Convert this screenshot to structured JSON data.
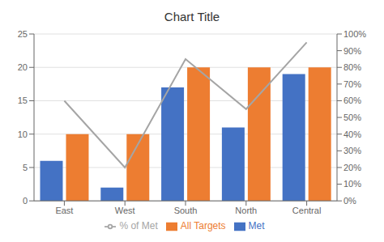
{
  "chart_data": {
    "type": "bar",
    "title": "Chart Title",
    "categories": [
      "East",
      "West",
      "South",
      "North",
      "Central"
    ],
    "series": [
      {
        "name": "Met",
        "color": "#4472C4",
        "values": [
          6,
          2,
          17,
          11,
          19
        ]
      },
      {
        "name": "All Targets",
        "color": "#ED7D31",
        "values": [
          10,
          10,
          20,
          20,
          20
        ]
      },
      {
        "name": "% of Met",
        "type": "line",
        "axis": "y2",
        "color": "#A5A5A5",
        "values": [
          0.6,
          0.2,
          0.85,
          0.55,
          0.95
        ]
      }
    ],
    "ylim": [
      0,
      25
    ],
    "yticks": [
      0,
      5,
      10,
      15,
      20,
      25
    ],
    "y2lim": [
      0,
      1.0
    ],
    "y2ticks": [
      {
        "value": 0.0,
        "label": "0%"
      },
      {
        "value": 0.1,
        "label": "10%"
      },
      {
        "value": 0.2,
        "label": "20%"
      },
      {
        "value": 0.3,
        "label": "30%"
      },
      {
        "value": 0.4,
        "label": "40%"
      },
      {
        "value": 0.5,
        "label": "50%"
      },
      {
        "value": 0.6,
        "label": "60%"
      },
      {
        "value": 0.7,
        "label": "70%"
      },
      {
        "value": 0.8,
        "label": "80%"
      },
      {
        "value": 0.9,
        "label": "90%"
      },
      {
        "value": 1.0,
        "label": "100%"
      }
    ],
    "grid": true,
    "legend": "bottom"
  }
}
